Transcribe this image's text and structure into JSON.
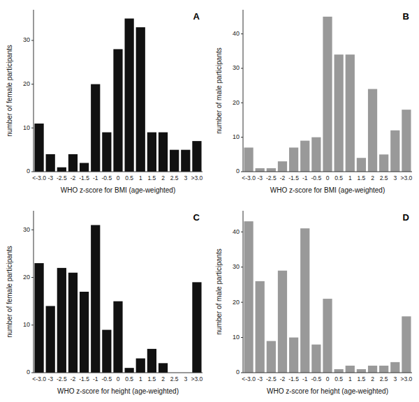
{
  "chart_data": [
    {
      "type": "bar",
      "title": "A",
      "categories": [
        "<-3.0",
        "-3",
        "-2.5",
        "-2",
        "-1.5",
        "-1",
        "-0.5",
        "0",
        "0.5",
        "1",
        "1.5",
        "2",
        "2.5",
        "3",
        ">3.0"
      ],
      "values": [
        11,
        4,
        1,
        4,
        2,
        20,
        9,
        28,
        35,
        33,
        9,
        9,
        5,
        5,
        7
      ],
      "color": "#111111",
      "xlabel": "WHO z-score for BMI (age-weighted)",
      "ylabel": "number of female participants",
      "ylim": [
        0,
        37
      ],
      "yticks": [
        0,
        10,
        20,
        30
      ]
    },
    {
      "type": "bar",
      "title": "B",
      "categories": [
        "<-3.0",
        "-3",
        "-2.5",
        "-2",
        "-1.5",
        "-1",
        "-0.5",
        "0",
        "0.5",
        "1",
        "1.5",
        "2",
        "2.5",
        "3",
        ">3.0"
      ],
      "values": [
        7,
        1,
        1,
        3,
        7,
        9,
        10,
        45,
        34,
        34,
        4,
        24,
        5,
        12,
        18
      ],
      "color": "#999999",
      "xlabel": "WHO z-score for BMI (age-weighted)",
      "ylabel": "number of male participants",
      "ylim": [
        0,
        47
      ],
      "yticks": [
        0,
        10,
        20,
        30,
        40
      ]
    },
    {
      "type": "bar",
      "title": "C",
      "categories": [
        "<-3.0",
        "-3",
        "-2.5",
        "-2",
        "-1.5",
        "-1",
        "-0.5",
        "0",
        "0.5",
        "1",
        "1.5",
        "2",
        "2.5",
        "3",
        ">3.0"
      ],
      "values": [
        23,
        14,
        22,
        21,
        17,
        31,
        9,
        15,
        1,
        3,
        5,
        2,
        0,
        0,
        19
      ],
      "color": "#111111",
      "xlabel": "WHO z-score for height (age-weighted)",
      "ylabel": "number of female participants",
      "ylim": [
        0,
        34
      ],
      "yticks": [
        0,
        10,
        20,
        30
      ]
    },
    {
      "type": "bar",
      "title": "D",
      "categories": [
        "<-3.0",
        "-3",
        "-2.5",
        "-2",
        "-1.5",
        "-1",
        "-0.5",
        "0",
        "0.5",
        "1",
        "1.5",
        "2",
        "2.5",
        "3",
        ">3.0"
      ],
      "values": [
        43,
        26,
        9,
        29,
        10,
        41,
        8,
        21,
        1,
        2,
        1,
        2,
        2,
        3,
        16
      ],
      "color": "#999999",
      "xlabel": "WHO z-score for height (age-weighted)",
      "ylabel": "number of male participants",
      "ylim": [
        0,
        46
      ],
      "yticks": [
        0,
        10,
        20,
        30,
        40
      ]
    }
  ]
}
